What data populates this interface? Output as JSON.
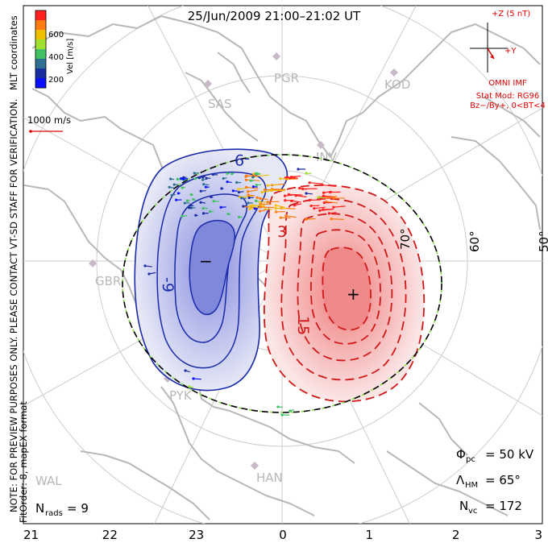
{
  "title": "25/Jun/2009 21:00–21:02 UT",
  "colorbar": {
    "ticks": [
      "600",
      "400",
      "200"
    ],
    "label": "Vel [m/s]",
    "colors": [
      "#ff2020",
      "#ff7a10",
      "#f0c000",
      "#a0e030",
      "#40c060",
      "#2f7090",
      "#1a2ea0",
      "#0a10ff"
    ]
  },
  "reference_vector": "1000 m/s",
  "coordinates_label": "MLT coordinates",
  "side_note_1": "NOTE: FOR PREVIEW PURPOSES ONLY. PLEASE CONTACT VT-SD STAFF FOR VERIFICATION.",
  "side_note_2": "FitOrder: 8, mapEX format",
  "imf": {
    "z_label": "+Z (5 nT)",
    "y_label": "+Y",
    "source": "OMNI IMF",
    "stat_mod": "Stat Mod: RG96",
    "conditions": "Bz−/By+, 0<BT<4"
  },
  "stations": [
    "PGR",
    "KOD",
    "SAS",
    "INV",
    "GBR",
    "PYK",
    "HAN",
    "WAL"
  ],
  "latitude_labels": [
    "60°",
    "50°",
    "70°"
  ],
  "contour_labels": [
    "-9",
    "-9",
    "3",
    "15"
  ],
  "potential_markers": [
    "−",
    "+"
  ],
  "stats": {
    "phi_pc_label": "Φ",
    "phi_pc_sub": "pc",
    "phi_pc_value": "= 50 kV",
    "lambda_label": "Λ",
    "lambda_sub": "HM",
    "lambda_value": "= 65°",
    "nvc_label": "N",
    "nvc_sub": "vc",
    "nvc_value": "= 172",
    "nrads_label": "N",
    "nrads_sub": "rads",
    "nrads_value": "= 9"
  },
  "mlt_axis": {
    "labels": [
      "21",
      "22",
      "23",
      "0",
      "1",
      "2",
      "3"
    ],
    "values": [
      21,
      22,
      23,
      0,
      1,
      2,
      3
    ]
  },
  "colors": {
    "negative_cell": "#b8bce8",
    "positive_cell": "#f4a6a6",
    "negative_contour": "#1a2aa8",
    "positive_contour": "#d01818",
    "boundary": "#000000",
    "grid": "#cccccc",
    "coast": "#b8b8b8",
    "imf_text": "#e00000"
  }
}
